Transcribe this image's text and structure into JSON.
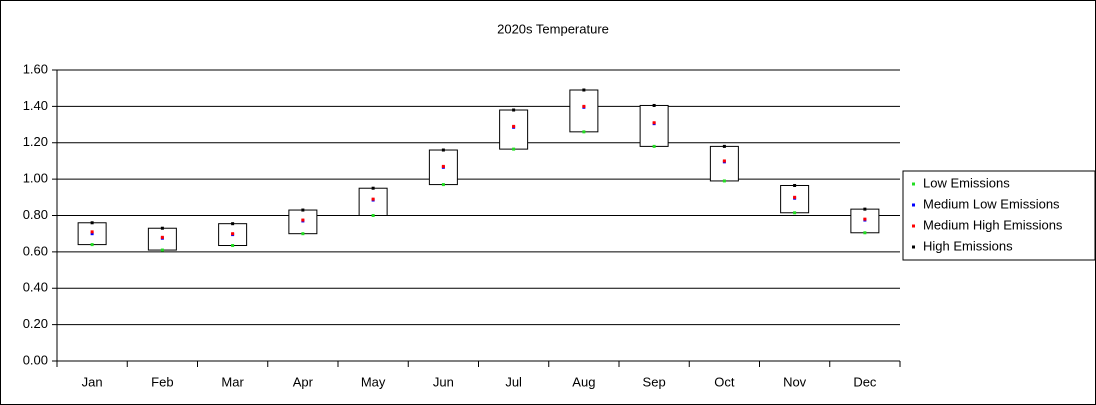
{
  "chart_data": {
    "type": "stock",
    "title": "2020s Temperature",
    "categories": [
      "Jan",
      "Feb",
      "Mar",
      "Apr",
      "May",
      "Jun",
      "Jul",
      "Aug",
      "Sep",
      "Oct",
      "Nov",
      "Dec"
    ],
    "series": [
      {
        "name": "Low Emissions",
        "color": "#22dd22",
        "values": [
          0.64,
          0.61,
          0.635,
          0.7,
          0.8,
          0.97,
          1.165,
          1.26,
          1.18,
          0.99,
          0.815,
          0.705
        ]
      },
      {
        "name": "Medium Low Emissions",
        "color": "#0000ff",
        "values": [
          0.7,
          0.675,
          0.695,
          0.77,
          0.885,
          1.065,
          1.285,
          1.395,
          1.305,
          1.095,
          0.895,
          0.775
        ]
      },
      {
        "name": "Medium High Emissions",
        "color": "#ff0000",
        "values": [
          0.71,
          0.68,
          0.7,
          0.775,
          0.89,
          1.07,
          1.29,
          1.4,
          1.31,
          1.1,
          0.9,
          0.78
        ]
      },
      {
        "name": "High Emissions",
        "color": "#000000",
        "values": [
          0.76,
          0.73,
          0.755,
          0.83,
          0.95,
          1.16,
          1.38,
          1.49,
          1.405,
          1.18,
          0.965,
          0.835
        ]
      }
    ],
    "ylim": [
      0,
      1.6
    ],
    "yticks": [
      {
        "value": 0,
        "label": "0.00"
      },
      {
        "value": 0.2,
        "label": "0.20"
      },
      {
        "value": 0.4,
        "label": "0.40"
      },
      {
        "value": 0.6,
        "label": "0.60"
      },
      {
        "value": 0.8,
        "label": "0.80"
      },
      {
        "value": 1.0,
        "label": "1.00"
      },
      {
        "value": 1.2,
        "label": "1.20"
      },
      {
        "value": 1.4,
        "label": "1.40"
      },
      {
        "value": 1.6,
        "label": "1.60"
      }
    ],
    "grid": true,
    "legend": "right"
  }
}
